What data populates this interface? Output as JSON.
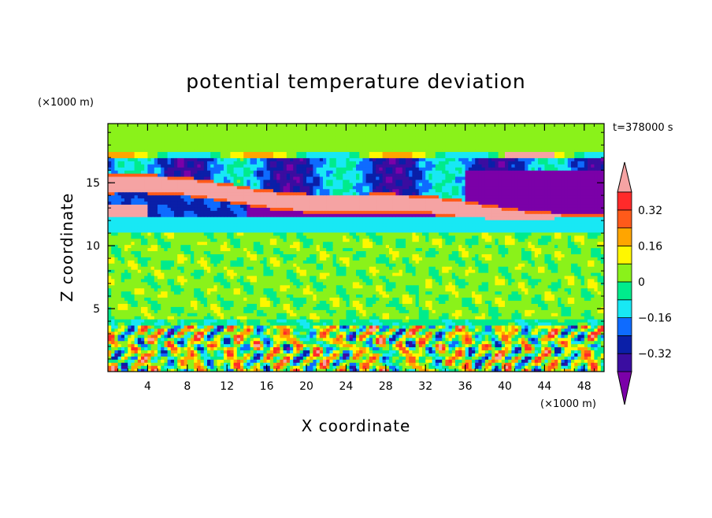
{
  "chart_data": {
    "type": "heatmap",
    "title": "potential temperature deviation",
    "xlabel": "X coordinate",
    "ylabel": "Z coordinate",
    "x_unit": "(×1000 m)",
    "y_unit": "(×1000 m)",
    "time_label": "t=378000 s",
    "xlim": [
      0,
      50
    ],
    "ylim": [
      0,
      19.7
    ],
    "x_ticks": [
      4,
      8,
      12,
      16,
      20,
      24,
      28,
      32,
      36,
      40,
      44,
      48
    ],
    "y_ticks": [
      5,
      10,
      15
    ],
    "colorbar": {
      "levels": [
        -0.4,
        -0.32,
        -0.24,
        -0.16,
        -0.08,
        0,
        0.08,
        0.16,
        0.24,
        0.32,
        0.4
      ],
      "tick_labels": [
        "0.32",
        "0.16",
        "0",
        "−0.16",
        "−0.32"
      ],
      "tick_values": [
        0.32,
        0.16,
        0,
        -0.16,
        -0.32
      ],
      "colors": [
        "#7B00A8",
        "#3A0DA0",
        "#0A1FA8",
        "#0E6BFF",
        "#18E8F4",
        "#00EB8C",
        "#8AF21A",
        "#FFF700",
        "#FFA500",
        "#FF5A1A",
        "#FF2A2A",
        "#F5A3A3"
      ],
      "extend": "both"
    },
    "bands": [
      {
        "z": [
          17.0,
          19.7
        ],
        "value": 0.06,
        "desc_level": "light green"
      },
      {
        "z": [
          16.0,
          17.0
        ],
        "value": -0.2,
        "desc_level": "blue/orange mix"
      },
      {
        "z": [
          14.0,
          16.0
        ],
        "value": 0.42,
        "desc_level": "pink ridge"
      },
      {
        "z": [
          12.2,
          14.0
        ],
        "value": -0.25,
        "desc_level": "blue/purple"
      },
      {
        "z": [
          11.0,
          12.2
        ],
        "value": -0.12,
        "desc_level": "cyan"
      },
      {
        "z": [
          3.6,
          11.0
        ],
        "value": 0.02,
        "desc_level": "green"
      },
      {
        "z": [
          0.0,
          3.6
        ],
        "value": 0.0,
        "desc_level": "mixed turbulent"
      }
    ]
  }
}
